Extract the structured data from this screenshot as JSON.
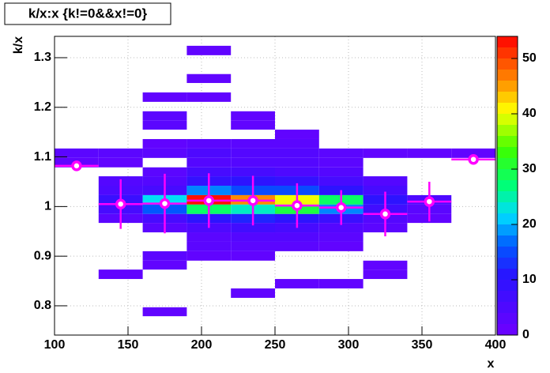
{
  "chart_data": {
    "type": "heatmap",
    "title": "k/x:x {k!=0&&x!=0}",
    "xlabel": "x",
    "ylabel": "k/x",
    "xlim": [
      100,
      400
    ],
    "ylim": [
      0.741,
      1.343
    ],
    "zlim": [
      0,
      54
    ],
    "xticks": [
      100,
      150,
      200,
      250,
      300,
      350,
      400
    ],
    "yticks": [
      0.8,
      0.9,
      1,
      1.1,
      1.2,
      1.3
    ],
    "zticks": [
      0,
      10,
      20,
      30,
      40,
      50
    ],
    "grid": true,
    "columns": [
      {
        "x": [
          100,
          130
        ],
        "cells": [
          {
            "y": [
              1.098,
              1.117
            ],
            "z": 3
          },
          {
            "y": [
              1.079,
              1.098
            ],
            "z": 2
          }
        ]
      },
      {
        "x": [
          130,
          160
        ],
        "cells": [
          {
            "y": [
              1.098,
              1.117
            ],
            "z": 3
          },
          {
            "y": [
              1.079,
              1.098
            ],
            "z": 2
          },
          {
            "y": [
              1.042,
              1.061
            ],
            "z": 4
          },
          {
            "y": [
              1.023,
              1.042
            ],
            "z": 5
          },
          {
            "y": [
              1.004,
              1.023
            ],
            "z": 8
          },
          {
            "y": [
              0.985,
              1.004
            ],
            "z": 6
          },
          {
            "y": [
              0.967,
              0.985
            ],
            "z": 3
          },
          {
            "y": [
              0.854,
              0.873
            ],
            "z": 2
          }
        ]
      },
      {
        "x": [
          160,
          190
        ],
        "cells": [
          {
            "y": [
              1.211,
              1.23
            ],
            "z": 2
          },
          {
            "y": [
              1.173,
              1.192
            ],
            "z": 3
          },
          {
            "y": [
              1.155,
              1.173
            ],
            "z": 3
          },
          {
            "y": [
              1.117,
              1.136
            ],
            "z": 2
          },
          {
            "y": [
              1.098,
              1.117
            ],
            "z": 3
          },
          {
            "y": [
              1.061,
              1.079
            ],
            "z": 3
          },
          {
            "y": [
              1.042,
              1.061
            ],
            "z": 4
          },
          {
            "y": [
              1.023,
              1.042
            ],
            "z": 6
          },
          {
            "y": [
              1.004,
              1.023
            ],
            "z": 22
          },
          {
            "y": [
              0.985,
              1.004
            ],
            "z": 16
          },
          {
            "y": [
              0.967,
              0.985
            ],
            "z": 6
          },
          {
            "y": [
              0.948,
              0.967
            ],
            "z": 3
          },
          {
            "y": [
              0.891,
              0.91
            ],
            "z": 3
          },
          {
            "y": [
              0.873,
              0.891
            ],
            "z": 2
          },
          {
            "y": [
              0.779,
              0.797
            ],
            "z": 2
          }
        ]
      },
      {
        "x": [
          190,
          220
        ],
        "cells": [
          {
            "y": [
              1.305,
              1.324
            ],
            "z": 2
          },
          {
            "y": [
              1.249,
              1.267
            ],
            "z": 2
          },
          {
            "y": [
              1.211,
              1.23
            ],
            "z": 2
          },
          {
            "y": [
              1.117,
              1.136
            ],
            "z": 3
          },
          {
            "y": [
              1.098,
              1.117
            ],
            "z": 5
          },
          {
            "y": [
              1.079,
              1.098
            ],
            "z": 4
          },
          {
            "y": [
              1.061,
              1.079
            ],
            "z": 6
          },
          {
            "y": [
              1.042,
              1.061
            ],
            "z": 9
          },
          {
            "y": [
              1.023,
              1.042
            ],
            "z": 18
          },
          {
            "y": [
              1.004,
              1.023
            ],
            "z": 53
          },
          {
            "y": [
              0.985,
              1.004
            ],
            "z": 28
          },
          {
            "y": [
              0.967,
              0.985
            ],
            "z": 10
          },
          {
            "y": [
              0.948,
              0.967
            ],
            "z": 5
          },
          {
            "y": [
              0.929,
              0.948
            ],
            "z": 3
          },
          {
            "y": [
              0.91,
              0.929
            ],
            "z": 3
          },
          {
            "y": [
              0.891,
              0.91
            ],
            "z": 2
          }
        ]
      },
      {
        "x": [
          220,
          250
        ],
        "cells": [
          {
            "y": [
              1.173,
              1.192
            ],
            "z": 2
          },
          {
            "y": [
              1.155,
              1.173
            ],
            "z": 2
          },
          {
            "y": [
              1.117,
              1.136
            ],
            "z": 3
          },
          {
            "y": [
              1.098,
              1.117
            ],
            "z": 4
          },
          {
            "y": [
              1.079,
              1.098
            ],
            "z": 4
          },
          {
            "y": [
              1.061,
              1.079
            ],
            "z": 6
          },
          {
            "y": [
              1.042,
              1.061
            ],
            "z": 10
          },
          {
            "y": [
              1.023,
              1.042
            ],
            "z": 15
          },
          {
            "y": [
              1.004,
              1.023
            ],
            "z": 46
          },
          {
            "y": [
              0.985,
              1.004
            ],
            "z": 24
          },
          {
            "y": [
              0.967,
              0.985
            ],
            "z": 12
          },
          {
            "y": [
              0.948,
              0.967
            ],
            "z": 7
          },
          {
            "y": [
              0.929,
              0.948
            ],
            "z": 4
          },
          {
            "y": [
              0.91,
              0.929
            ],
            "z": 3
          },
          {
            "y": [
              0.891,
              0.91
            ],
            "z": 2
          },
          {
            "y": [
              0.816,
              0.835
            ],
            "z": 2
          }
        ]
      },
      {
        "x": [
          250,
          280
        ],
        "cells": [
          {
            "y": [
              1.136,
              1.155
            ],
            "z": 2
          },
          {
            "y": [
              1.117,
              1.136
            ],
            "z": 3
          },
          {
            "y": [
              1.098,
              1.117
            ],
            "z": 4
          },
          {
            "y": [
              1.079,
              1.098
            ],
            "z": 4
          },
          {
            "y": [
              1.061,
              1.079
            ],
            "z": 5
          },
          {
            "y": [
              1.042,
              1.061
            ],
            "z": 9
          },
          {
            "y": [
              1.023,
              1.042
            ],
            "z": 15
          },
          {
            "y": [
              1.004,
              1.023
            ],
            "z": 40
          },
          {
            "y": [
              0.985,
              1.004
            ],
            "z": 30
          },
          {
            "y": [
              0.967,
              0.985
            ],
            "z": 10
          },
          {
            "y": [
              0.948,
              0.967
            ],
            "z": 6
          },
          {
            "y": [
              0.929,
              0.948
            ],
            "z": 4
          },
          {
            "y": [
              0.91,
              0.929
            ],
            "z": 3
          },
          {
            "y": [
              0.835,
              0.854
            ],
            "z": 2
          }
        ]
      },
      {
        "x": [
          280,
          310
        ],
        "cells": [
          {
            "y": [
              1.098,
              1.117
            ],
            "z": 3
          },
          {
            "y": [
              1.079,
              1.098
            ],
            "z": 3
          },
          {
            "y": [
              1.061,
              1.079
            ],
            "z": 4
          },
          {
            "y": [
              1.042,
              1.061
            ],
            "z": 6
          },
          {
            "y": [
              1.023,
              1.042
            ],
            "z": 10
          },
          {
            "y": [
              1.004,
              1.023
            ],
            "z": 28
          },
          {
            "y": [
              0.985,
              1.004
            ],
            "z": 18
          },
          {
            "y": [
              0.967,
              0.985
            ],
            "z": 8
          },
          {
            "y": [
              0.948,
              0.967
            ],
            "z": 4
          },
          {
            "y": [
              0.929,
              0.948
            ],
            "z": 3
          },
          {
            "y": [
              0.91,
              0.929
            ],
            "z": 2
          },
          {
            "y": [
              0.835,
              0.854
            ],
            "z": 2
          }
        ]
      },
      {
        "x": [
          310,
          340
        ],
        "cells": [
          {
            "y": [
              1.098,
              1.117
            ],
            "z": 2
          },
          {
            "y": [
              1.042,
              1.061
            ],
            "z": 4
          },
          {
            "y": [
              1.023,
              1.042
            ],
            "z": 6
          },
          {
            "y": [
              1.004,
              1.023
            ],
            "z": 10
          },
          {
            "y": [
              0.985,
              1.004
            ],
            "z": 7
          },
          {
            "y": [
              0.967,
              0.985
            ],
            "z": 4
          },
          {
            "y": [
              0.948,
              0.967
            ],
            "z": 3
          },
          {
            "y": [
              0.873,
              0.891
            ],
            "z": 2
          },
          {
            "y": [
              0.854,
              0.873
            ],
            "z": 2
          }
        ]
      },
      {
        "x": [
          340,
          370
        ],
        "cells": [
          {
            "y": [
              1.098,
              1.117
            ],
            "z": 2
          },
          {
            "y": [
              1.004,
              1.023
            ],
            "z": 5
          },
          {
            "y": [
              0.985,
              1.004
            ],
            "z": 3
          },
          {
            "y": [
              0.967,
              0.985
            ],
            "z": 2
          }
        ]
      },
      {
        "x": [
          370,
          400
        ],
        "cells": [
          {
            "y": [
              1.098,
              1.117
            ],
            "z": 2
          }
        ]
      }
    ],
    "profile": {
      "color": "#ff00ff",
      "bins": [
        100,
        130,
        160,
        190,
        220,
        250,
        280,
        310,
        340,
        370,
        400
      ],
      "values": [
        1.082,
        1.005,
        1.006,
        1.012,
        1.012,
        1.002,
        0.998,
        0.985,
        1.01,
        1.095
      ],
      "errors": [
        0,
        0.05,
        0.06,
        0.055,
        0.05,
        0.045,
        0.035,
        0.045,
        0.04,
        0
      ]
    }
  }
}
